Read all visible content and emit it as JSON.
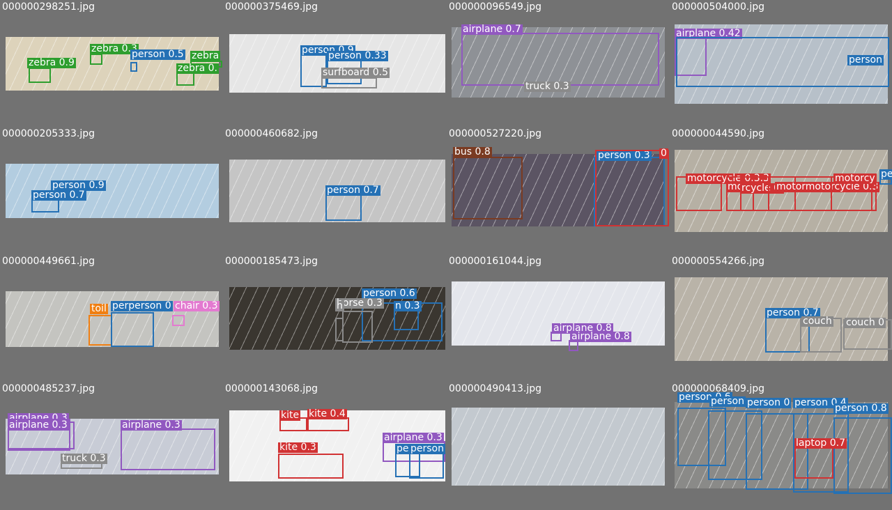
{
  "colors": {
    "background": "#727272",
    "class_colors": {
      "zebra": "#2e9e2e",
      "person": "#2571b5",
      "surfboard": "#8a8a8a",
      "airplane": "#9158c0",
      "truck": "#8a8a8a",
      "bus": "#7a3b22",
      "motorcycle": "#d13233",
      "toilet": "#f07f12",
      "chair": "#e37ad0",
      "horse": "#8a8a8a",
      "couch": "#8a8a8a",
      "kite": "#d13233",
      "laptop": "#d13233"
    }
  },
  "tiles": [
    {
      "filename": "000000298251.jpg",
      "scene": "#ddd3bb",
      "detections": [
        {
          "label": "zebra 0.9",
          "cls": "zebra"
        },
        {
          "label": "zebra 0.3",
          "cls": "zebra"
        },
        {
          "label": "person 0.5",
          "cls": "person"
        },
        {
          "label": "zebra",
          "cls": "zebra"
        },
        {
          "label": "zebra 0.",
          "cls": "zebra"
        }
      ]
    },
    {
      "filename": "000000375469.jpg",
      "scene": "#e6e6e6",
      "detections": [
        {
          "label": "person 0.9",
          "cls": "person"
        },
        {
          "label": "person 0.33",
          "cls": "person"
        },
        {
          "label": "surfboard 0.5",
          "cls": "surfboard"
        }
      ]
    },
    {
      "filename": "000000096549.jpg",
      "scene": "#8e9196",
      "detections": [
        {
          "label": "airplane 0.7",
          "cls": "airplane"
        },
        {
          "label": "truck 0.3",
          "cls": "truck"
        }
      ]
    },
    {
      "filename": "000000504000.jpg",
      "scene": "#b7c0c9",
      "detections": [
        {
          "label": "airplane 0.42",
          "cls": "airplane"
        },
        {
          "label": "person",
          "cls": "person"
        }
      ]
    },
    {
      "filename": "000000205333.jpg",
      "scene": "#b3cde0",
      "detections": [
        {
          "label": "person 0.9",
          "cls": "person"
        },
        {
          "label": "person 0.7",
          "cls": "person"
        }
      ]
    },
    {
      "filename": "000000460682.jpg",
      "scene": "#c5c5c5",
      "detections": [
        {
          "label": "person 0.7",
          "cls": "person"
        }
      ]
    },
    {
      "filename": "000000527220.jpg",
      "scene": "#5b5463",
      "detections": [
        {
          "label": "bus 0.8",
          "cls": "bus"
        },
        {
          "label": "person 0.3",
          "cls": "person"
        },
        {
          "label": "0",
          "cls": "motorcycle"
        }
      ]
    },
    {
      "filename": "000000044590.jpg",
      "scene": "#b6b0a4",
      "detections": [
        {
          "label": "motorcycle 0.3.3",
          "cls": "motorcycle"
        },
        {
          "label": "mo",
          "cls": "motorcycle"
        },
        {
          "label": "rcycle 0.",
          "cls": "motorcycle"
        },
        {
          "label": "motormotorcycle 0.3",
          "cls": "motorcycle"
        },
        {
          "label": "motorcy",
          "cls": "motorcycle"
        },
        {
          "label": "pe",
          "cls": "person"
        }
      ]
    },
    {
      "filename": "000000449661.jpg",
      "scene": "#c4c4c0",
      "detections": [
        {
          "label": "toil",
          "cls": "toilet"
        },
        {
          "label": "perperson 0",
          "cls": "person"
        },
        {
          "label": "chair 0.3",
          "cls": "chair"
        }
      ]
    },
    {
      "filename": "000000185473.jpg",
      "scene": "#3a3630",
      "detections": [
        {
          "label": "person 0.6",
          "cls": "person"
        },
        {
          "label": "horse 0.3",
          "cls": "horse"
        },
        {
          "label": "n 0.3",
          "cls": "person"
        },
        {
          "label": "h",
          "cls": "horse"
        }
      ]
    },
    {
      "filename": "000000161044.jpg",
      "scene": "#e4e6ec",
      "detections": [
        {
          "label": "airplane 0.8",
          "cls": "airplane"
        },
        {
          "label": "airplane 0.8",
          "cls": "airplane"
        }
      ]
    },
    {
      "filename": "000000554266.jpg",
      "scene": "#b9b3a8",
      "detections": [
        {
          "label": "person 0.7",
          "cls": "person"
        },
        {
          "label": "couch",
          "cls": "couch"
        },
        {
          "label": "couch 0",
          "cls": "couch"
        }
      ]
    },
    {
      "filename": "000000485237.jpg",
      "scene": "#c8ccd6",
      "detections": [
        {
          "label": "airplane 0.3",
          "cls": "airplane"
        },
        {
          "label": "airplane 0.3",
          "cls": "airplane"
        },
        {
          "label": "airplane 0.3",
          "cls": "airplane"
        },
        {
          "label": "truck 0.3",
          "cls": "truck"
        }
      ]
    },
    {
      "filename": "000000143068.jpg",
      "scene": "#f1f1f1",
      "detections": [
        {
          "label": "kite",
          "cls": "kite"
        },
        {
          "label": "kite 0.4",
          "cls": "kite"
        },
        {
          "label": "kite 0.3",
          "cls": "kite"
        },
        {
          "label": "airplane 0.3",
          "cls": "airplane"
        },
        {
          "label": "pe",
          "cls": "person"
        },
        {
          "label": "person",
          "cls": "person"
        }
      ]
    },
    {
      "filename": "000000490413.jpg",
      "scene": "#c3c9cf",
      "detections": []
    },
    {
      "filename": "000000068409.jpg",
      "scene": "#8a8a88",
      "detections": [
        {
          "label": "person 0.6",
          "cls": "person"
        },
        {
          "label": "person",
          "cls": "person"
        },
        {
          "label": "person 0",
          "cls": "person"
        },
        {
          "label": "person 0.4",
          "cls": "person"
        },
        {
          "label": "person 0.8",
          "cls": "person"
        },
        {
          "label": "laptop 0.7",
          "cls": "laptop"
        }
      ]
    }
  ]
}
